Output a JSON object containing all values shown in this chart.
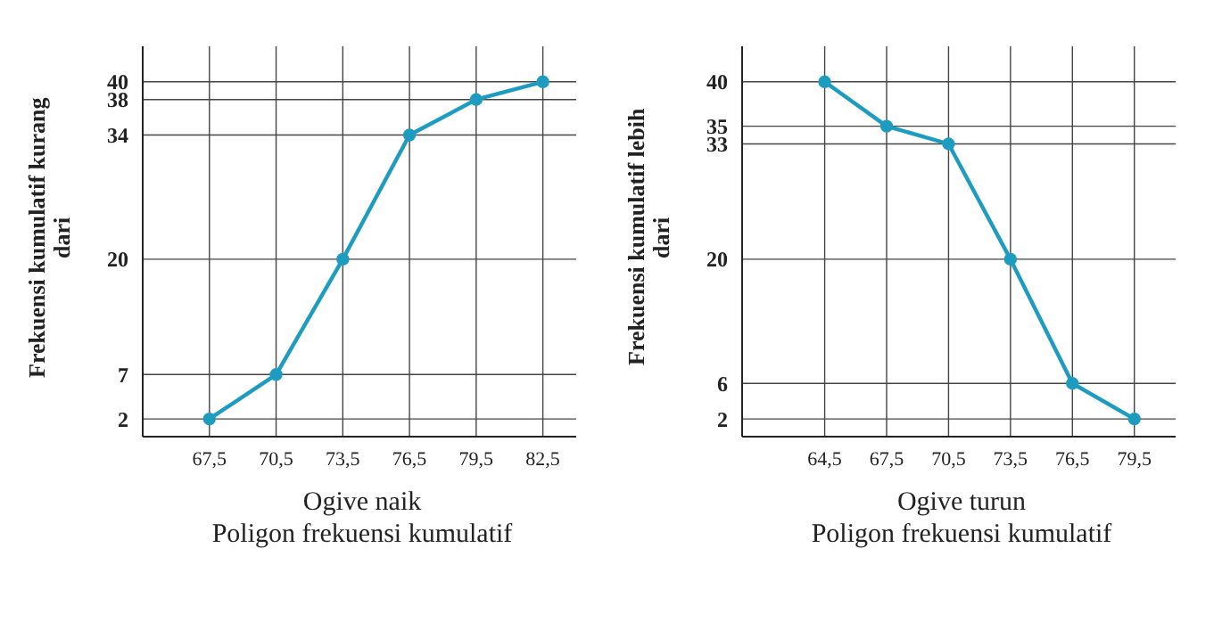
{
  "chart_data": [
    {
      "type": "line",
      "title": "Ogive naik",
      "subtitle": "Poligon frekuensi kumulatif",
      "ylabel": "Frekuensi kumulatif kurang dari",
      "x": [
        67.5,
        70.5,
        73.5,
        76.5,
        79.5,
        82.5
      ],
      "series": [
        {
          "color": "#1e9cc0",
          "values": [
            2,
            7,
            20,
            34,
            38,
            40
          ]
        }
      ],
      "xlim": [
        64.5,
        84
      ],
      "xticks": [
        {
          "value": 67.5,
          "label": "67,5"
        },
        {
          "value": 70.5,
          "label": "70,5"
        },
        {
          "value": 73.5,
          "label": "73,5"
        },
        {
          "value": 76.5,
          "label": "76,5"
        },
        {
          "value": 79.5,
          "label": "79,5"
        },
        {
          "value": 82.5,
          "label": "82,5"
        }
      ],
      "ylim": [
        0,
        44
      ],
      "yticks": [
        2,
        7,
        20,
        34,
        38,
        40
      ],
      "grid": true,
      "marker": "circle",
      "line_style": "solid"
    },
    {
      "type": "line",
      "title": "Ogive turun",
      "subtitle": "Poligon frekuensi kumulatif",
      "ylabel": "Frekuensi kumulatif lebih dari",
      "x": [
        64.5,
        67.5,
        70.5,
        73.5,
        76.5,
        79.5
      ],
      "series": [
        {
          "color": "#1e9cc0",
          "values": [
            40,
            35,
            33,
            20,
            6,
            2
          ]
        }
      ],
      "xlim": [
        60.5,
        81.5
      ],
      "xticks": [
        {
          "value": 64.5,
          "label": "64,5"
        },
        {
          "value": 67.5,
          "label": "67,5"
        },
        {
          "value": 70.5,
          "label": "70,5"
        },
        {
          "value": 73.5,
          "label": "73,5"
        },
        {
          "value": 76.5,
          "label": "76,5"
        },
        {
          "value": 79.5,
          "label": "79,5"
        }
      ],
      "ylim": [
        0,
        44
      ],
      "yticks": [
        2,
        6,
        20,
        33,
        35,
        40
      ],
      "grid": true,
      "marker": "circle",
      "line_style": "solid"
    }
  ]
}
